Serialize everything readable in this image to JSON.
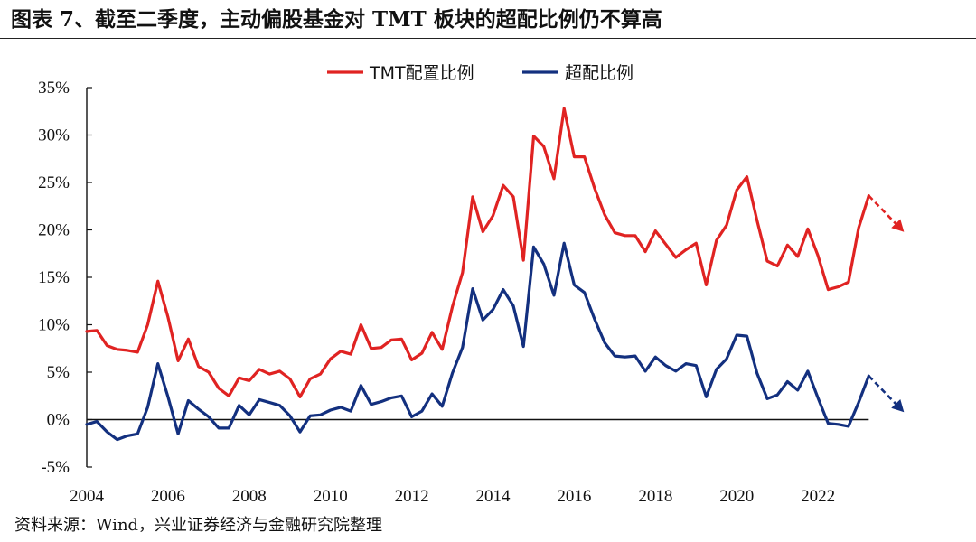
{
  "title": "图表 7、截至二季度，主动偏股基金对 TMT 板块的超配比例仍不算高",
  "source": "资料来源：Wind，兴业证券经济与金融研究院整理",
  "colors": {
    "red": "#e02322",
    "navy": "#13307f"
  },
  "chart_data": {
    "type": "line",
    "title": "图表 7、截至二季度，主动偏股基金对 TMT 板块的超配比例仍不算高",
    "xlabel": "",
    "ylabel": "",
    "ylim": [
      -5,
      35
    ],
    "xlim": [
      2004,
      2025
    ],
    "yticks": [
      "-5%",
      "0%",
      "5%",
      "10%",
      "15%",
      "20%",
      "25%",
      "30%",
      "35%"
    ],
    "xticks": [
      "2004",
      "2006",
      "2008",
      "2010",
      "2012",
      "2014",
      "2016",
      "2018",
      "2020",
      "2022"
    ],
    "legend_position": "top-center",
    "grid": false,
    "x": [
      2004.0,
      2004.25,
      2004.5,
      2004.75,
      2005.0,
      2005.25,
      2005.5,
      2005.75,
      2006.0,
      2006.25,
      2006.5,
      2006.75,
      2007.0,
      2007.25,
      2007.5,
      2007.75,
      2008.0,
      2008.25,
      2008.5,
      2008.75,
      2009.0,
      2009.25,
      2009.5,
      2009.75,
      2010.0,
      2010.25,
      2010.5,
      2010.75,
      2011.0,
      2011.25,
      2011.5,
      2011.75,
      2012.0,
      2012.25,
      2012.5,
      2012.75,
      2013.0,
      2013.25,
      2013.5,
      2013.75,
      2014.0,
      2014.25,
      2014.5,
      2014.75,
      2015.0,
      2015.25,
      2015.5,
      2015.75,
      2016.0,
      2016.25,
      2016.5,
      2016.75,
      2017.0,
      2017.25,
      2017.5,
      2017.75,
      2018.0,
      2018.25,
      2018.5,
      2018.75,
      2019.0,
      2019.25,
      2019.5,
      2019.75,
      2020.0,
      2020.25,
      2020.5,
      2020.75,
      2021.0,
      2021.25,
      2021.5,
      2021.75,
      2022.0,
      2022.25,
      2022.5,
      2022.75,
      2023.0,
      2023.25
    ],
    "series": [
      {
        "name": "TMT配置比例",
        "color": "#e02322",
        "values": [
          9.3,
          9.4,
          7.8,
          7.4,
          7.3,
          7.1,
          10.0,
          14.6,
          10.8,
          6.2,
          8.5,
          5.6,
          5.0,
          3.3,
          2.5,
          4.4,
          4.1,
          5.3,
          4.8,
          5.1,
          4.3,
          2.4,
          4.3,
          4.8,
          6.4,
          7.2,
          6.9,
          10.0,
          7.5,
          7.6,
          8.4,
          8.5,
          6.3,
          7.0,
          9.2,
          7.4,
          11.9,
          15.5,
          23.5,
          19.8,
          21.5,
          24.7,
          23.5,
          16.8,
          29.9,
          28.8,
          25.4,
          32.8,
          27.7,
          27.7,
          24.4,
          21.6,
          19.7,
          19.4,
          19.4,
          17.7,
          19.9,
          18.5,
          17.1,
          17.9,
          18.6,
          14.2,
          18.9,
          20.5,
          24.2,
          25.6,
          21.0,
          16.7,
          16.2,
          18.4,
          17.2,
          20.1,
          17.3,
          13.7,
          14.0,
          14.5,
          20.2,
          23.6
        ],
        "forecast_arrow": true
      },
      {
        "name": "超配比例",
        "color": "#13307f",
        "values": [
          -0.5,
          -0.2,
          -1.3,
          -2.1,
          -1.7,
          -1.5,
          1.3,
          5.9,
          2.4,
          -1.5,
          2.0,
          1.1,
          0.3,
          -0.9,
          -0.9,
          1.5,
          0.5,
          2.1,
          1.8,
          1.5,
          0.4,
          -1.3,
          0.4,
          0.5,
          1.0,
          1.3,
          0.9,
          3.6,
          1.6,
          1.9,
          2.3,
          2.5,
          0.3,
          0.9,
          2.7,
          1.4,
          4.9,
          7.6,
          13.8,
          10.5,
          11.6,
          13.7,
          12.0,
          7.7,
          18.2,
          16.4,
          13.1,
          18.6,
          14.2,
          13.4,
          10.6,
          8.1,
          6.7,
          6.6,
          6.7,
          5.1,
          6.6,
          5.7,
          5.1,
          5.9,
          5.7,
          2.4,
          5.3,
          6.4,
          8.9,
          8.8,
          4.9,
          2.2,
          2.6,
          4.0,
          3.1,
          5.1,
          2.3,
          -0.4,
          -0.5,
          -0.7,
          1.8,
          4.6
        ],
        "forecast_arrow": true
      }
    ]
  }
}
